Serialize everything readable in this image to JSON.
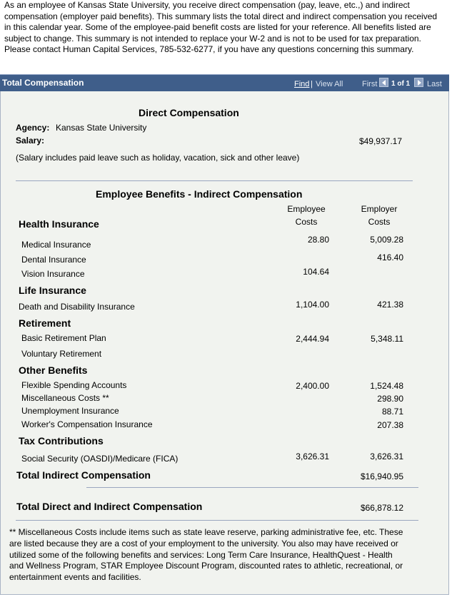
{
  "intro_text": "As an employee of Kansas State University, you receive direct compensation (pay, leave, etc.,) and indirect compensation (employer paid benefits). This summary lists the total direct and indirect compensation you received in this calendar year. Some of the employee-paid benefit costs are listed for your reference. All benefits listed are subject to change. This summary is not intended to replace your W-2 and is not to be used for tax preparation. Please contact Human Capital Services, 785-532-6277, if you have any questions concerning this summary.",
  "header": {
    "title": "Total Compensation",
    "find": "Find",
    "separator": "|",
    "view_all": "View All",
    "first": "First",
    "count": "1 of 1",
    "last": "Last"
  },
  "direct": {
    "title": "Direct Compensation",
    "agency_label": "Agency:",
    "agency_value": "Kansas State University",
    "salary_label": "Salary:",
    "salary_value": "$49,937.17",
    "note": "(Salary includes paid leave such as holiday, vacation, sick and other leave)"
  },
  "benefits": {
    "title": "Employee Benefits - Indirect Compensation",
    "col_employee_1": "Employee",
    "col_employee_2": "Costs",
    "col_employer_1": "Employer",
    "col_employer_2": "Costs",
    "health": {
      "title": "Health Insurance",
      "medical": {
        "label": "Medical Insurance",
        "employee": "28.80",
        "employer": "5,009.28"
      },
      "dental": {
        "label": "Dental Insurance",
        "employee": "",
        "employer": "416.40"
      },
      "vision": {
        "label": "Vision Insurance",
        "employee": "104.64",
        "employer": ""
      }
    },
    "life": {
      "title": "Life Insurance",
      "death": {
        "label": "Death and Disability Insurance",
        "employee": "1,104.00",
        "employer": "421.38"
      }
    },
    "retirement": {
      "title": "Retirement",
      "basic": {
        "label": "Basic Retirement Plan",
        "employee": "2,444.94",
        "employer": "5,348.11"
      },
      "voluntary": {
        "label": "Voluntary Retirement",
        "employee": "",
        "employer": ""
      }
    },
    "other": {
      "title": "Other Benefits",
      "fsa": {
        "label": "Flexible Spending Accounts",
        "employee": "2,400.00",
        "employer": "1,524.48"
      },
      "misc": {
        "label": "Miscellaneous Costs **",
        "employee": "",
        "employer": "298.90"
      },
      "unemployment": {
        "label": "Unemployment Insurance",
        "employee": "",
        "employer": "88.71"
      },
      "workers": {
        "label": "Worker's Compensation Insurance",
        "employee": "",
        "employer": "207.38"
      }
    },
    "tax": {
      "title": "Tax Contributions",
      "fica": {
        "label": "Social Security (OASDI)/Medicare (FICA)",
        "employee": "3,626.31",
        "employer": "3,626.31"
      }
    },
    "total_indirect_label": "Total Indirect Compensation",
    "total_indirect_value": "$16,940.95",
    "total_label": "Total Direct and Indirect Compensation",
    "total_value": "$66,878.12"
  },
  "footnote": "** Miscellaneous Costs include items such as state leave reserve, parking administrative fee, etc. These are listed because they are a cost of your employment to the university. You also may have received or utilized some of the following benefits and services: Long Term Care Insurance, HealthQuest - Health and Wellness Program, STAR Employee Discount Program, discounted rates to athletic, recreational, or entertainment events and facilities."
}
